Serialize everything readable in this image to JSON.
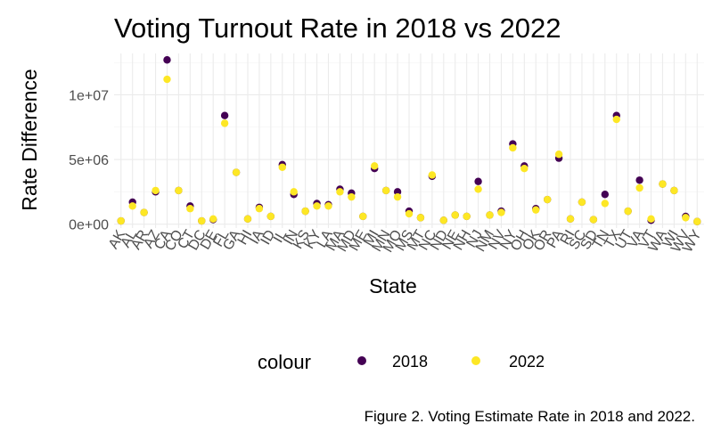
{
  "chart_data": {
    "type": "scatter",
    "title": "Voting Turnout Rate in 2018 vs 2022",
    "xlabel": "State",
    "ylabel": "Rate Difference",
    "caption": "Figure 2. Voting Estimate Rate in 2018 and 2022.",
    "categories": [
      "AK",
      "AL",
      "AR",
      "AZ",
      "CA",
      "CO",
      "CT",
      "DC",
      "DE",
      "FL",
      "GA",
      "HI",
      "IA",
      "ID",
      "IL",
      "IN",
      "KS",
      "KY",
      "LA",
      "MA",
      "MD",
      "ME",
      "MI",
      "MN",
      "MO",
      "MS",
      "MT",
      "NC",
      "ND",
      "NE",
      "NH",
      "NJ",
      "NM",
      "NV",
      "NY",
      "OH",
      "OK",
      "OR",
      "PA",
      "RI",
      "SC",
      "SD",
      "TN",
      "TX",
      "UT",
      "VA",
      "VT",
      "WA",
      "WI",
      "WV",
      "WY"
    ],
    "y_ticks": [
      0,
      5000000,
      10000000
    ],
    "y_tick_labels": [
      "0e+00",
      "5e+06",
      "1e+07"
    ],
    "ylim": [
      -300000,
      13200000
    ],
    "grid": true,
    "legend": {
      "title": "colour",
      "position": "bottom"
    },
    "series": [
      {
        "name": "2018",
        "color": "#440154",
        "values": [
          250000,
          1700000,
          900000,
          2500000,
          12700000,
          2600000,
          1400000,
          250000,
          350000,
          8400000,
          4000000,
          400000,
          1300000,
          600000,
          4600000,
          2300000,
          1000000,
          1600000,
          1500000,
          2700000,
          2400000,
          600000,
          4300000,
          2600000,
          2500000,
          1000000,
          500000,
          3700000,
          300000,
          700000,
          600000,
          3300000,
          700000,
          1000000,
          6200000,
          4500000,
          1200000,
          1900000,
          5100000,
          400000,
          1700000,
          350000,
          2300000,
          8400000,
          1000000,
          3400000,
          300000,
          3100000,
          2600000,
          600000,
          200000
        ]
      },
      {
        "name": "2022",
        "color": "#fde725",
        "values": [
          250000,
          1400000,
          900000,
          2600000,
          11200000,
          2600000,
          1200000,
          250000,
          400000,
          7800000,
          4000000,
          400000,
          1200000,
          600000,
          4400000,
          2500000,
          1000000,
          1400000,
          1400000,
          2500000,
          2100000,
          600000,
          4500000,
          2600000,
          2100000,
          800000,
          500000,
          3800000,
          300000,
          700000,
          600000,
          2700000,
          700000,
          900000,
          5900000,
          4300000,
          1100000,
          1900000,
          5400000,
          400000,
          1700000,
          350000,
          1600000,
          8100000,
          1000000,
          2800000,
          400000,
          3100000,
          2600000,
          500000,
          200000
        ]
      }
    ]
  }
}
